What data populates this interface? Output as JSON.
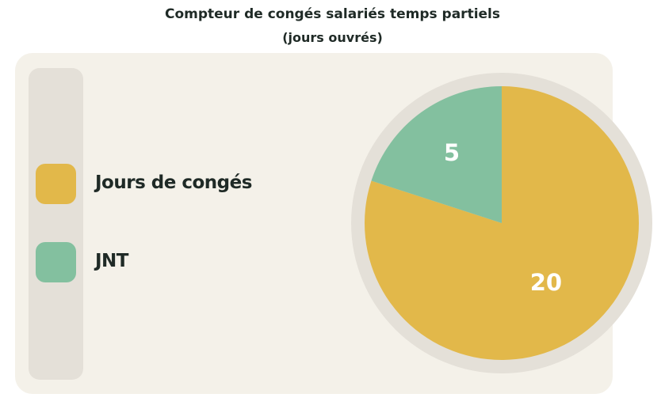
{
  "chart_data": {
    "type": "pie",
    "title": "Compteur de congés salariés temps partiels",
    "subtitle": "(jours ouvrés)",
    "legend_position": "left",
    "categories": [
      "Jours de congés",
      "JNT"
    ],
    "values": [
      20,
      5
    ],
    "colors": [
      "#e2b84a",
      "#83c09f"
    ]
  }
}
